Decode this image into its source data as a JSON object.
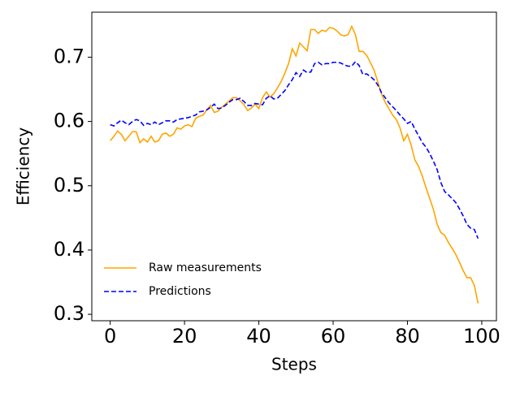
{
  "chart_data": {
    "type": "line",
    "xlabel": "Steps",
    "ylabel": "Efficiency",
    "x": [
      0,
      1,
      2,
      3,
      4,
      5,
      6,
      7,
      8,
      9,
      10,
      11,
      12,
      13,
      14,
      15,
      16,
      17,
      18,
      19,
      20,
      21,
      22,
      23,
      24,
      25,
      26,
      27,
      28,
      29,
      30,
      31,
      32,
      33,
      34,
      35,
      36,
      37,
      38,
      39,
      40,
      41,
      42,
      43,
      44,
      45,
      46,
      47,
      48,
      49,
      50,
      51,
      52,
      53,
      54,
      55,
      56,
      57,
      58,
      59,
      60,
      61,
      62,
      63,
      64,
      65,
      66,
      67,
      68,
      69,
      70,
      71,
      72,
      73,
      74,
      75,
      76,
      77,
      78,
      79,
      80,
      81,
      82,
      83,
      84,
      85,
      86,
      87,
      88,
      89,
      90,
      91,
      92,
      93,
      94,
      95,
      96,
      97,
      98,
      99
    ],
    "series": [
      {
        "name": "Raw measurements",
        "color": "#ffa500",
        "dash": "solid",
        "values": [
          0.57,
          0.577,
          0.585,
          0.58,
          0.57,
          0.577,
          0.584,
          0.584,
          0.567,
          0.573,
          0.568,
          0.577,
          0.568,
          0.57,
          0.58,
          0.582,
          0.577,
          0.58,
          0.59,
          0.588,
          0.593,
          0.595,
          0.592,
          0.605,
          0.608,
          0.61,
          0.618,
          0.625,
          0.614,
          0.616,
          0.622,
          0.627,
          0.632,
          0.637,
          0.637,
          0.632,
          0.626,
          0.617,
          0.621,
          0.627,
          0.62,
          0.637,
          0.646,
          0.638,
          0.643,
          0.652,
          0.662,
          0.675,
          0.69,
          0.713,
          0.702,
          0.722,
          0.716,
          0.71,
          0.743,
          0.743,
          0.737,
          0.742,
          0.74,
          0.746,
          0.745,
          0.741,
          0.735,
          0.733,
          0.735,
          0.748,
          0.735,
          0.709,
          0.709,
          0.703,
          0.692,
          0.68,
          0.662,
          0.643,
          0.63,
          0.62,
          0.61,
          0.603,
          0.59,
          0.57,
          0.58,
          0.563,
          0.54,
          0.53,
          0.515,
          0.497,
          0.48,
          0.463,
          0.44,
          0.427,
          0.423,
          0.412,
          0.403,
          0.393,
          0.381,
          0.368,
          0.357,
          0.357,
          0.345,
          0.317
        ]
      },
      {
        "name": "Predictions",
        "color": "#0000ff",
        "dash": "dashed",
        "values": [
          0.595,
          0.593,
          0.598,
          0.602,
          0.598,
          0.595,
          0.6,
          0.603,
          0.601,
          0.594,
          0.597,
          0.595,
          0.599,
          0.595,
          0.598,
          0.601,
          0.601,
          0.599,
          0.603,
          0.604,
          0.605,
          0.606,
          0.608,
          0.61,
          0.615,
          0.616,
          0.618,
          0.622,
          0.627,
          0.62,
          0.621,
          0.625,
          0.63,
          0.634,
          0.634,
          0.636,
          0.631,
          0.625,
          0.625,
          0.628,
          0.627,
          0.626,
          0.636,
          0.64,
          0.635,
          0.636,
          0.642,
          0.648,
          0.657,
          0.665,
          0.676,
          0.67,
          0.68,
          0.676,
          0.677,
          0.69,
          0.692,
          0.688,
          0.69,
          0.69,
          0.692,
          0.692,
          0.691,
          0.688,
          0.686,
          0.686,
          0.693,
          0.687,
          0.673,
          0.674,
          0.67,
          0.665,
          0.657,
          0.645,
          0.637,
          0.629,
          0.623,
          0.617,
          0.61,
          0.604,
          0.597,
          0.6,
          0.588,
          0.578,
          0.567,
          0.56,
          0.55,
          0.538,
          0.525,
          0.505,
          0.491,
          0.486,
          0.48,
          0.474,
          0.464,
          0.453,
          0.44,
          0.434,
          0.432,
          0.418
        ]
      }
    ],
    "xlim": [
      -4.95,
      103.95
    ],
    "xticks": [
      0,
      20,
      40,
      60,
      80,
      100
    ],
    "ylim": [
      0.29,
      0.77
    ],
    "yticks": [
      0.3,
      0.4,
      0.5,
      0.6,
      0.7
    ],
    "legend": "lower left"
  }
}
